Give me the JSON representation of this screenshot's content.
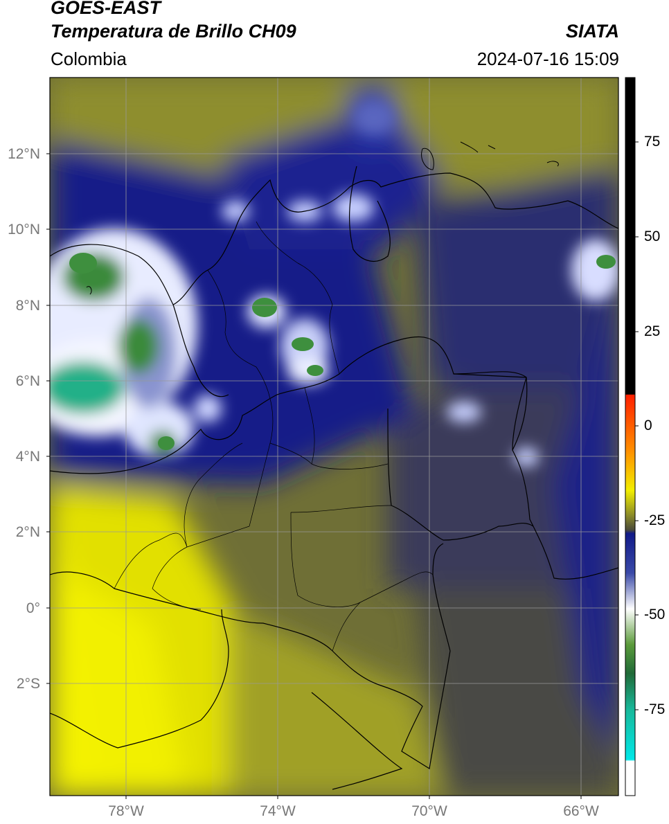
{
  "header": {
    "satellite": "GOES-EAST",
    "product": "Temperatura de Brillo CH09",
    "agency": "SIATA",
    "region": "Colombia",
    "datetime": "2024-07-16 15:09"
  },
  "map": {
    "lat_labels": [
      "12°N",
      "10°N",
      "8°N",
      "6°N",
      "4°N",
      "2°N",
      "0°",
      "2°S"
    ],
    "lon_labels": [
      "78°W",
      "74°W",
      "70°W",
      "66°W"
    ]
  },
  "colorbar": {
    "ticks": [
      "75",
      "50",
      "25",
      "0",
      "-25",
      "-50",
      "-75"
    ],
    "colors": {
      "black": "#000000",
      "red": "#ff2000",
      "orange": "#ff9000",
      "yellow": "#f2ee00",
      "olive": "#7a7a28",
      "navy": "#111a88",
      "white": "#ffffff",
      "green": "#2e8a2e",
      "teal": "#18c8a8",
      "cyan": "#00e8e8"
    }
  }
}
